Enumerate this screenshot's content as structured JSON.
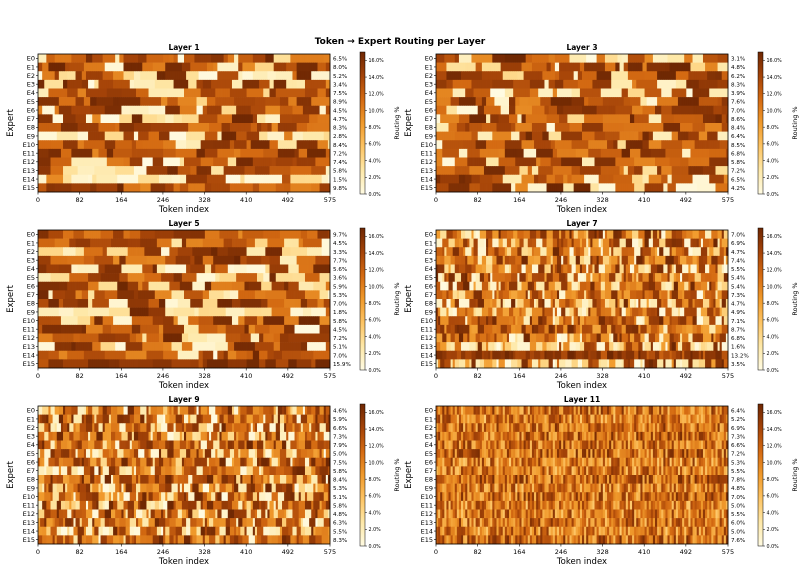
{
  "figure": {
    "suptitle": "Token → Expert Routing per Layer"
  },
  "colors": {
    "colormap": [
      "#fffbe3",
      "#fee8a8",
      "#fdc464",
      "#f09a2c",
      "#d46a12",
      "#a44308",
      "#6e2703"
    ],
    "axis": "#000000"
  },
  "chart_data": [
    {
      "type": "heatmap",
      "title": "Layer 1",
      "xlabel": "Token index",
      "ylabel": "Expert",
      "x_ticks": [
        0,
        82,
        164,
        246,
        328,
        410,
        492,
        575
      ],
      "experts": [
        "E0",
        "E1",
        "E2",
        "E3",
        "E4",
        "E5",
        "E6",
        "E7",
        "E8",
        "E9",
        "E10",
        "E11",
        "E12",
        "E13",
        "E14",
        "E15"
      ],
      "routing_pct": [
        "6.5%",
        "8.0%",
        "5.2%",
        "3.4%",
        "7.5%",
        "8.9%",
        "4.5%",
        "4.7%",
        "8.3%",
        "2.8%",
        "8.4%",
        "7.2%",
        "7.4%",
        "5.8%",
        "1.5%",
        "9.8%"
      ],
      "colorbar": {
        "label": "Routing %",
        "ticks": [
          "0.0%",
          "2.0%",
          "4.0%",
          "6.0%",
          "8.0%",
          "10.0%",
          "12.0%",
          "14.0%",
          "16.0%"
        ],
        "range": [
          0,
          17
        ]
      },
      "pattern": "dense"
    },
    {
      "type": "heatmap",
      "title": "Layer 3",
      "xlabel": "Token index",
      "ylabel": "Expert",
      "x_ticks": [
        0,
        82,
        164,
        246,
        328,
        410,
        492,
        575
      ],
      "experts": [
        "E0",
        "E1",
        "E2",
        "E3",
        "E4",
        "E5",
        "E6",
        "E7",
        "E8",
        "E9",
        "E10",
        "E11",
        "E12",
        "E13",
        "E14",
        "E15"
      ],
      "routing_pct": [
        "3.1%",
        "4.8%",
        "6.2%",
        "8.3%",
        "3.9%",
        "7.6%",
        "7.0%",
        "8.6%",
        "8.4%",
        "6.4%",
        "8.5%",
        "6.8%",
        "5.8%",
        "7.2%",
        "6.5%",
        "4.2%"
      ],
      "colorbar": {
        "label": "Routing %",
        "ticks": [
          "0.0%",
          "2.0%",
          "4.0%",
          "6.0%",
          "8.0%",
          "10.0%",
          "12.0%",
          "14.0%",
          "16.0%"
        ],
        "range": [
          0,
          17
        ]
      },
      "pattern": "dense"
    },
    {
      "type": "heatmap",
      "title": "Layer 5",
      "xlabel": "Token index",
      "ylabel": "Expert",
      "x_ticks": [
        0,
        82,
        164,
        246,
        328,
        410,
        492,
        575
      ],
      "experts": [
        "E0",
        "E1",
        "E2",
        "E3",
        "E4",
        "E5",
        "E6",
        "E7",
        "E8",
        "E9",
        "E10",
        "E11",
        "E12",
        "E13",
        "E14",
        "E15"
      ],
      "routing_pct": [
        "9.7%",
        "4.5%",
        "3.3%",
        "7.7%",
        "5.6%",
        "3.6%",
        "5.9%",
        "5.3%",
        "7.0%",
        "1.8%",
        "5.8%",
        "4.5%",
        "7.2%",
        "5.1%",
        "7.0%",
        "15.9%"
      ],
      "colorbar": {
        "label": "Routing %",
        "ticks": [
          "0.0%",
          "2.0%",
          "4.0%",
          "6.0%",
          "8.0%",
          "10.0%",
          "12.0%",
          "14.0%",
          "16.0%"
        ],
        "range": [
          0,
          17
        ]
      },
      "pattern": "dense"
    },
    {
      "type": "heatmap",
      "title": "Layer 7",
      "xlabel": "Token index",
      "ylabel": "Expert",
      "x_ticks": [
        0,
        82,
        164,
        246,
        328,
        410,
        492,
        575
      ],
      "experts": [
        "E0",
        "E1",
        "E2",
        "E3",
        "E4",
        "E5",
        "E6",
        "E7",
        "E8",
        "E9",
        "E10",
        "E11",
        "E12",
        "E13",
        "E14",
        "E15"
      ],
      "routing_pct": [
        "7.0%",
        "6.9%",
        "4.7%",
        "7.4%",
        "5.5%",
        "5.4%",
        "5.4%",
        "7.3%",
        "4.7%",
        "4.9%",
        "7.1%",
        "8.7%",
        "6.8%",
        "1.6%",
        "13.2%",
        "3.5%"
      ],
      "colorbar": {
        "label": "Routing %",
        "ticks": [
          "0.0%",
          "2.0%",
          "4.0%",
          "6.0%",
          "8.0%",
          "10.0%",
          "12.0%",
          "14.0%",
          "16.0%"
        ],
        "range": [
          0,
          17
        ]
      },
      "pattern": "striped"
    },
    {
      "type": "heatmap",
      "title": "Layer 9",
      "xlabel": "Token index",
      "ylabel": "Expert",
      "x_ticks": [
        0,
        82,
        164,
        246,
        328,
        410,
        492,
        575
      ],
      "experts": [
        "E0",
        "E1",
        "E2",
        "E3",
        "E4",
        "E5",
        "E6",
        "E7",
        "E8",
        "E9",
        "E10",
        "E11",
        "E12",
        "E13",
        "E14",
        "E15"
      ],
      "routing_pct": [
        "4.6%",
        "5.9%",
        "6.6%",
        "7.3%",
        "7.9%",
        "5.0%",
        "7.5%",
        "5.8%",
        "8.4%",
        "5.3%",
        "5.1%",
        "5.8%",
        "4.8%",
        "6.3%",
        "5.5%",
        "8.3%"
      ],
      "colorbar": {
        "label": "Routing %",
        "ticks": [
          "0.0%",
          "2.0%",
          "4.0%",
          "6.0%",
          "8.0%",
          "10.0%",
          "12.0%",
          "14.0%",
          "16.0%"
        ],
        "range": [
          0,
          17
        ]
      },
      "pattern": "striped"
    },
    {
      "type": "heatmap",
      "title": "Layer 11",
      "xlabel": "Token index",
      "ylabel": "Expert",
      "x_ticks": [
        0,
        82,
        164,
        246,
        328,
        410,
        492,
        575
      ],
      "experts": [
        "E0",
        "E1",
        "E2",
        "E3",
        "E4",
        "E5",
        "E6",
        "E7",
        "E8",
        "E9",
        "E10",
        "E11",
        "E12",
        "E13",
        "E14",
        "E15"
      ],
      "routing_pct": [
        "6.4%",
        "5.2%",
        "6.9%",
        "7.3%",
        "6.6%",
        "7.2%",
        "5.3%",
        "5.5%",
        "7.8%",
        "4.8%",
        "7.0%",
        "5.0%",
        "5.5%",
        "6.0%",
        "5.0%",
        "7.6%"
      ],
      "colorbar": {
        "label": "Routing %",
        "ticks": [
          "0.0%",
          "2.0%",
          "4.0%",
          "6.0%",
          "8.0%",
          "10.0%",
          "12.0%",
          "14.0%",
          "16.0%"
        ],
        "range": [
          0,
          17
        ]
      },
      "pattern": "fine"
    }
  ]
}
